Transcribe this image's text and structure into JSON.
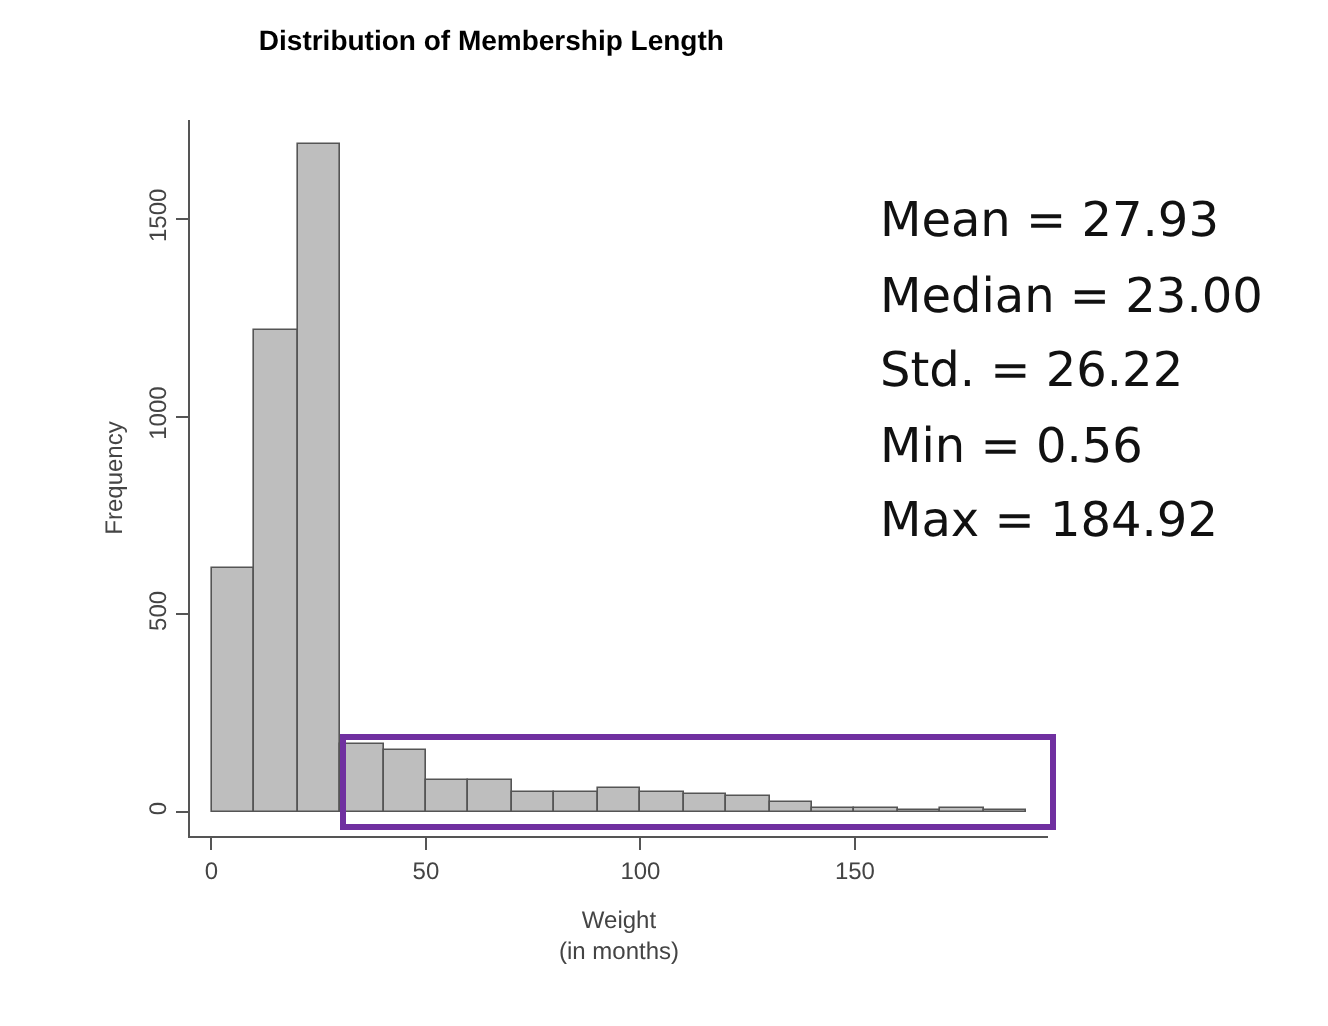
{
  "chart_data": {
    "type": "histogram",
    "title": "Distribution of Membership Length",
    "xlabel": "Weight\n(in months)",
    "ylabel": "Frequency",
    "bins": [
      0,
      10,
      20,
      30,
      40,
      50,
      60,
      70,
      80,
      90,
      100,
      110,
      120,
      130,
      140,
      150,
      160,
      170,
      180,
      190
    ],
    "values": [
      615,
      1220,
      1690,
      175,
      155,
      83,
      80,
      50,
      50,
      62,
      53,
      45,
      42,
      25,
      12,
      12,
      7,
      12,
      5
    ],
    "color": "#bebebe",
    "xlim": [
      -5,
      195
    ],
    "xticks": [
      0,
      50,
      100,
      150
    ],
    "ylim": [
      -60,
      1750
    ],
    "yticks": [
      0,
      500,
      1000,
      1500
    ],
    "grid": false,
    "legend": false,
    "annotations": [
      "Mean = 27.93",
      "Median = 23.00",
      "Std. = 26.22",
      "Min = 0.56",
      "Max = 184.92"
    ]
  }
}
